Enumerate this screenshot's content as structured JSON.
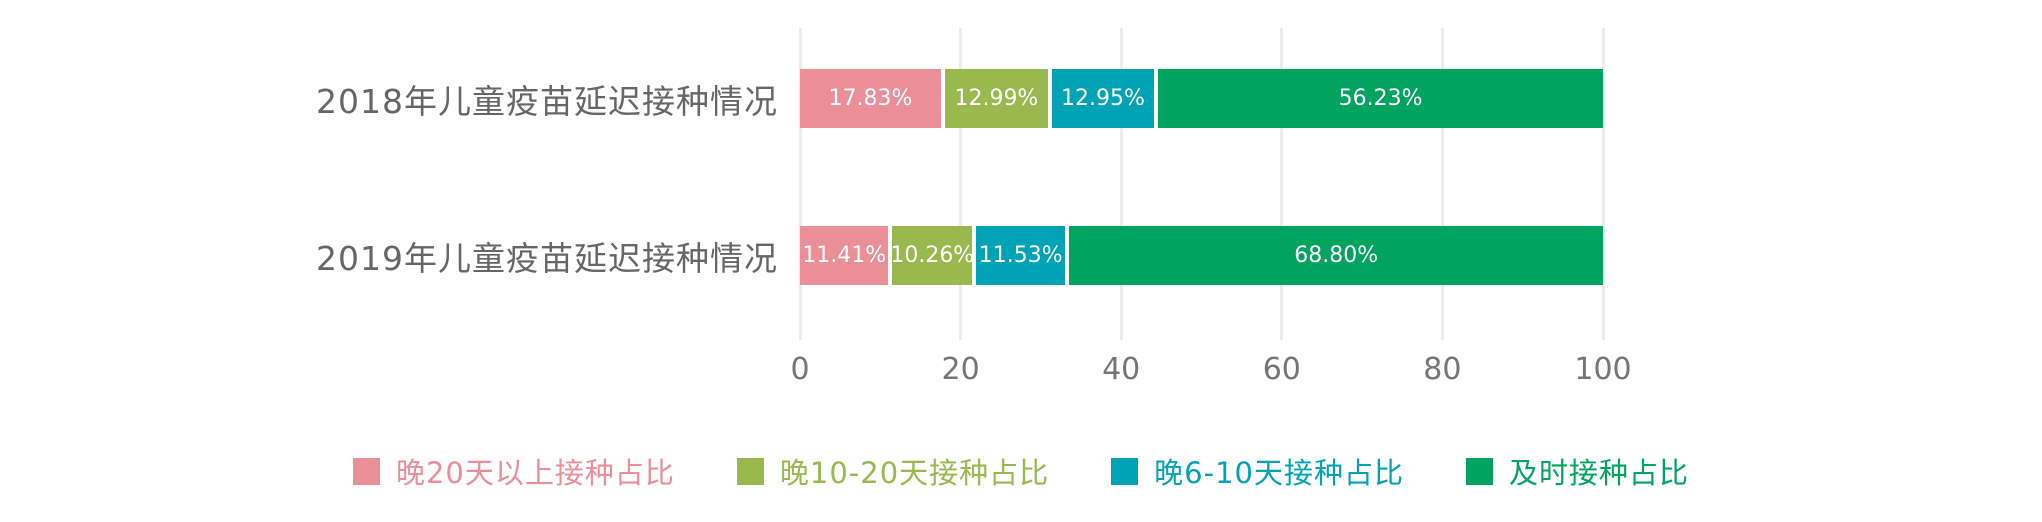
{
  "chart_data": {
    "type": "bar",
    "orientation": "horizontal",
    "stacked": true,
    "normalized": true,
    "categories": [
      "2018年儿童疫苗延迟接种情况",
      "2019年儿童疫苗延迟接种情况"
    ],
    "series": [
      {
        "name": "晚20天以上接种占比",
        "color": "#ea8e98",
        "values": [
          17.83,
          11.41
        ]
      },
      {
        "name": "晚10-20天接种占比",
        "color": "#99b94e",
        "values": [
          12.99,
          10.26
        ]
      },
      {
        "name": "晚6-10天接种占比",
        "color": "#00a3b5",
        "values": [
          12.95,
          11.53
        ]
      },
      {
        "name": "及时接种占比",
        "color": "#00a45e",
        "values": [
          56.23,
          68.8
        ]
      }
    ],
    "bar_labels": [
      [
        "17.83%",
        "12.99%",
        "12.95%",
        "56.23%"
      ],
      [
        "11.41%",
        "10.26%",
        "11.53%",
        "68.80%"
      ]
    ],
    "x_ticks": [
      "0",
      "20",
      "40",
      "60",
      "80",
      "100"
    ],
    "xlim": [
      0,
      100
    ],
    "grid": true,
    "gridline_color": "#ececec",
    "label_color": "#666666",
    "tick_color": "#757575",
    "legend_position": "bottom"
  }
}
